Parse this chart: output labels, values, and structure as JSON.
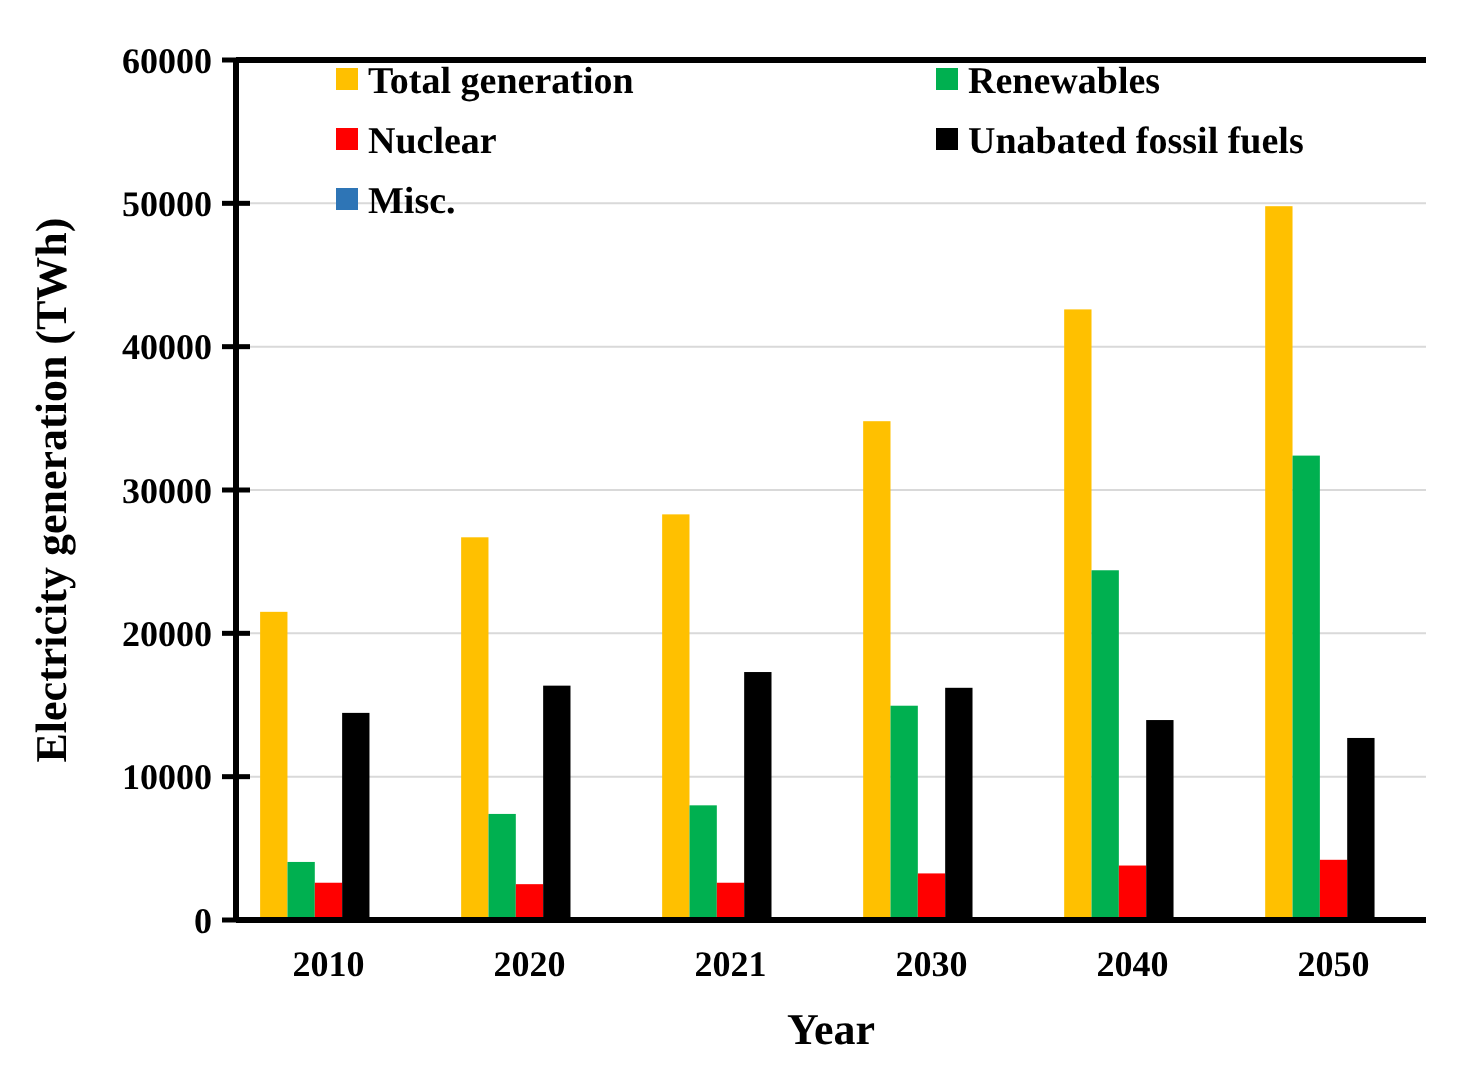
{
  "chart_data": {
    "type": "bar",
    "xlabel": "Year",
    "ylabel": "Electricity generation (TWh)",
    "categories": [
      "2010",
      "2020",
      "2021",
      "2030",
      "2040",
      "2050"
    ],
    "series": [
      {
        "name": "Total generation",
        "color": "#ffc000",
        "values": [
          21500,
          26700,
          28300,
          34800,
          42600,
          49800
        ]
      },
      {
        "name": "Renewables",
        "color": "#00b050",
        "values": [
          4050,
          7400,
          8000,
          14950,
          24400,
          32400
        ]
      },
      {
        "name": "Nuclear",
        "color": "#ff0000",
        "values": [
          2600,
          2500,
          2600,
          3250,
          3800,
          4200
        ]
      },
      {
        "name": "Unabated fossil fuels",
        "color": "#000000",
        "values": [
          14450,
          16350,
          17300,
          16200,
          13950,
          12700
        ]
      },
      {
        "name": "Misc.",
        "color": "#2e75b6",
        "values": [
          0,
          0,
          0,
          0,
          0,
          0
        ]
      }
    ],
    "ylim": [
      0,
      60000
    ],
    "yticks": [
      0,
      10000,
      20000,
      30000,
      40000,
      50000,
      60000
    ],
    "grid": "y",
    "legend": "top"
  }
}
